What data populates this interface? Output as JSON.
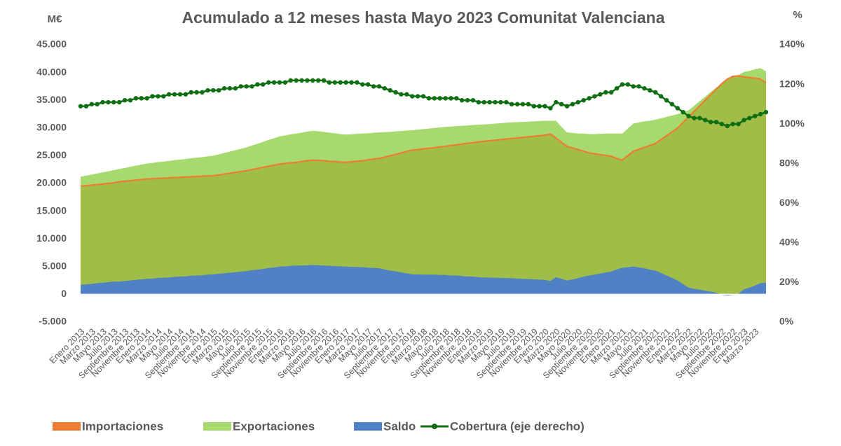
{
  "chart_data": {
    "type": "area",
    "title": "Acumulado a 12 meses hasta Mayo 2023 Comunitat Valenciana",
    "ylabel": "M€",
    "y2label": "%",
    "categories": [
      "Enero 2013",
      null,
      "Marzo 2013",
      null,
      "Mayo 2013",
      null,
      "Julio 2013",
      null,
      "Septiembre 2013",
      null,
      "Noviembre 2013",
      null,
      "Enero 2014",
      null,
      "Marzo 2014",
      null,
      "Mayo 2014",
      null,
      "Julio 2014",
      null,
      "Septiembre 2014",
      null,
      "Noviembre 2014",
      null,
      "Enero 2015",
      null,
      "Marzo 2015",
      null,
      "Mayo 2015",
      null,
      "Julio 2015",
      null,
      "Septiembre 2015",
      null,
      "Noviembre 2015",
      null,
      "Enero 2016",
      null,
      "Marzo 2016",
      null,
      "Mayo 2016",
      null,
      "Julio 2016",
      null,
      "Septiembre 2016",
      null,
      "Noviembre 2016",
      null,
      "Enero 2017",
      null,
      "Marzo 2017",
      null,
      "Mayo 2017",
      null,
      "Julio 2017",
      null,
      "Septiembre 2017",
      null,
      "Noviembre 2017",
      null,
      "Enero 2018",
      null,
      "Marzo 2018",
      null,
      "Mayo 2018",
      null,
      "Julio 2018",
      null,
      "Septiembre 2018",
      null,
      "Noviembre 2018",
      null,
      "Enero 2019",
      null,
      "Marzo 2019",
      null,
      "Mayo 2019",
      null,
      "Julio 2019",
      null,
      "Septiembre 2019",
      null,
      "Noviembre 2019",
      null,
      "Enero 2020",
      null,
      "Marzo 2020",
      null,
      "Mayo 2020",
      null,
      "Julio 2020",
      null,
      "Septiembre 2020",
      null,
      "Noviembre 2020",
      null,
      "Enero 2021",
      null,
      "Marzo 2021",
      null,
      "Mayo 2021",
      null,
      "Julio 2021",
      null,
      "Septiembre 2021",
      null,
      "Noviembre 2021",
      null,
      "Enero 2022",
      null,
      "Marzo 2022",
      null,
      "Mayo 2022",
      null,
      "Julio 2022",
      null,
      "Septiembre 2022",
      null,
      "Noviembre 2022",
      null,
      "Enero 2023",
      null,
      "Marzo 2023",
      null,
      null
    ],
    "series": [
      {
        "name": "Importaciones",
        "type": "area",
        "color": "#ed7d31",
        "fill": "#9fbd47",
        "values": [
          19500,
          19600,
          19700,
          19800,
          19900,
          20000,
          20100,
          20300,
          20400,
          20500,
          20600,
          20700,
          20800,
          20850,
          20900,
          20950,
          21000,
          21050,
          21100,
          21150,
          21200,
          21250,
          21300,
          21350,
          21400,
          21550,
          21700,
          21850,
          22000,
          22150,
          22300,
          22500,
          22700,
          22900,
          23100,
          23300,
          23500,
          23600,
          23700,
          23800,
          23950,
          24100,
          24200,
          24150,
          24100,
          24000,
          23950,
          23850,
          23800,
          23900,
          24000,
          24100,
          24250,
          24400,
          24500,
          24750,
          25000,
          25250,
          25500,
          25750,
          26000,
          26100,
          26250,
          26350,
          26450,
          26600,
          26700,
          26850,
          26950,
          27100,
          27250,
          27350,
          27500,
          27600,
          27700,
          27800,
          27900,
          28000,
          28100,
          28200,
          28300,
          28400,
          28500,
          28600,
          28700,
          28900,
          28200,
          27400,
          26700,
          26400,
          26100,
          25800,
          25500,
          25350,
          25200,
          25050,
          24900,
          24500,
          24200,
          25000,
          25800,
          26150,
          26500,
          26850,
          27200,
          27900,
          28600,
          29300,
          30000,
          31000,
          32000,
          33000,
          34000,
          35000,
          36000,
          37000,
          38000,
          38800,
          39300,
          39400,
          39200,
          39100,
          39000,
          38800,
          38100
        ]
      },
      {
        "name": "Exportaciones",
        "type": "area",
        "color": "#a6d96e",
        "values": [
          21200,
          21400,
          21600,
          21800,
          22000,
          22200,
          22400,
          22600,
          22800,
          23000,
          23200,
          23400,
          23600,
          23700,
          23850,
          23950,
          24050,
          24200,
          24300,
          24400,
          24550,
          24650,
          24750,
          24900,
          25000,
          25250,
          25500,
          25750,
          26000,
          26250,
          26500,
          26850,
          27150,
          27500,
          27850,
          28150,
          28500,
          28650,
          28850,
          29000,
          29150,
          29350,
          29500,
          29400,
          29300,
          29150,
          29050,
          28900,
          28800,
          28850,
          28950,
          29000,
          29050,
          29150,
          29200,
          29250,
          29300,
          29400,
          29450,
          29550,
          29600,
          29700,
          29800,
          29900,
          30000,
          30100,
          30200,
          30250,
          30350,
          30400,
          30450,
          30550,
          30600,
          30650,
          30700,
          30800,
          30850,
          30950,
          31000,
          31050,
          31100,
          31150,
          31200,
          31250,
          31300,
          31300,
          31300,
          30200,
          29200,
          29100,
          29000,
          29000,
          28900,
          28900,
          28950,
          29000,
          29000,
          29000,
          29000,
          29900,
          30800,
          31000,
          31200,
          31300,
          31500,
          31750,
          32000,
          32250,
          32500,
          32850,
          33200,
          34000,
          34850,
          35650,
          36500,
          37300,
          37900,
          38600,
          39200,
          39500,
          40100,
          40300,
          40600,
          40800,
          40200
        ]
      },
      {
        "name": "Saldo",
        "type": "area",
        "color": "#4f81c4",
        "values": [
          1700,
          1800,
          1900,
          2000,
          2100,
          2200,
          2300,
          2300,
          2400,
          2500,
          2600,
          2700,
          2800,
          2850,
          2950,
          3000,
          3050,
          3150,
          3200,
          3250,
          3350,
          3400,
          3450,
          3550,
          3600,
          3700,
          3800,
          3900,
          4000,
          4100,
          4200,
          4350,
          4450,
          4600,
          4750,
          4850,
          5000,
          5050,
          5150,
          5200,
          5200,
          5250,
          5300,
          5250,
          5200,
          5150,
          5100,
          5050,
          5000,
          4950,
          4950,
          4900,
          4800,
          4750,
          4700,
          4500,
          4300,
          4150,
          3950,
          3800,
          3600,
          3600,
          3550,
          3550,
          3550,
          3500,
          3500,
          3400,
          3400,
          3300,
          3200,
          3200,
          3100,
          3050,
          3000,
          3000,
          2950,
          2950,
          2900,
          2850,
          2800,
          2750,
          2700,
          2650,
          2600,
          2400,
          3100,
          2800,
          2500,
          2700,
          2900,
          3200,
          3400,
          3550,
          3750,
          3950,
          4100,
          4500,
          4800,
          4900,
          5000,
          4850,
          4700,
          4450,
          4300,
          3850,
          3400,
          2950,
          2500,
          1850,
          1200,
          1000,
          850,
          650,
          500,
          300,
          -100,
          -200,
          -100,
          100,
          900,
          1200,
          1600,
          2000,
          2100
        ]
      },
      {
        "name": "Cobertura (eje derecho)",
        "type": "line",
        "axis": "y2",
        "color": "#0e6e12",
        "markers": true,
        "values": [
          109,
          109,
          110,
          110,
          111,
          111,
          111,
          111,
          112,
          112,
          113,
          113,
          113,
          114,
          114,
          114,
          115,
          115,
          115,
          115,
          116,
          116,
          116,
          117,
          117,
          117,
          118,
          118,
          118,
          119,
          119,
          119,
          120,
          120,
          121,
          121,
          121,
          121,
          122,
          122,
          122,
          122,
          122,
          122,
          122,
          121,
          121,
          121,
          121,
          121,
          121,
          120,
          120,
          119,
          119,
          118,
          117,
          116,
          115,
          115,
          114,
          114,
          114,
          113,
          113,
          113,
          113,
          113,
          113,
          112,
          112,
          112,
          111,
          111,
          111,
          111,
          111,
          111,
          110,
          110,
          110,
          110,
          109,
          109,
          109,
          108,
          111,
          110,
          109,
          110,
          111,
          112,
          113,
          114,
          115,
          116,
          116,
          118,
          120,
          120,
          119,
          119,
          118,
          117,
          116,
          114,
          112,
          110,
          108,
          106,
          104,
          103,
          103,
          102,
          101,
          101,
          100,
          99,
          100,
          100,
          102,
          103,
          104,
          105,
          106
        ]
      }
    ],
    "ylim": [
      -5000,
      45000
    ],
    "yticks": [
      {
        "value": -5000,
        "label": "-5.000"
      },
      0,
      {
        "value": 5000,
        "label": "5.000"
      },
      {
        "value": 10000,
        "label": "10.000"
      },
      {
        "value": 15000,
        "label": "15.000"
      },
      {
        "value": 20000,
        "label": "20.000"
      },
      {
        "value": 25000,
        "label": "25.000"
      },
      {
        "value": 30000,
        "label": "30.000"
      },
      {
        "value": 35000,
        "label": "35.000"
      },
      {
        "value": 40000,
        "label": "40.000"
      },
      {
        "value": 45000,
        "label": "45.000"
      }
    ],
    "y2lim": [
      0,
      140
    ],
    "y2ticks": [
      {
        "value": 0,
        "label": "0%"
      },
      {
        "value": 20,
        "label": "20%"
      },
      {
        "value": 40,
        "label": "40%"
      },
      {
        "value": 60,
        "label": "60%"
      },
      {
        "value": 80,
        "label": "80%"
      },
      {
        "value": 100,
        "label": "100%"
      },
      {
        "value": 120,
        "label": "120%"
      },
      {
        "value": 140,
        "label": "140%"
      }
    ],
    "grid": false,
    "legend": "bottom"
  }
}
